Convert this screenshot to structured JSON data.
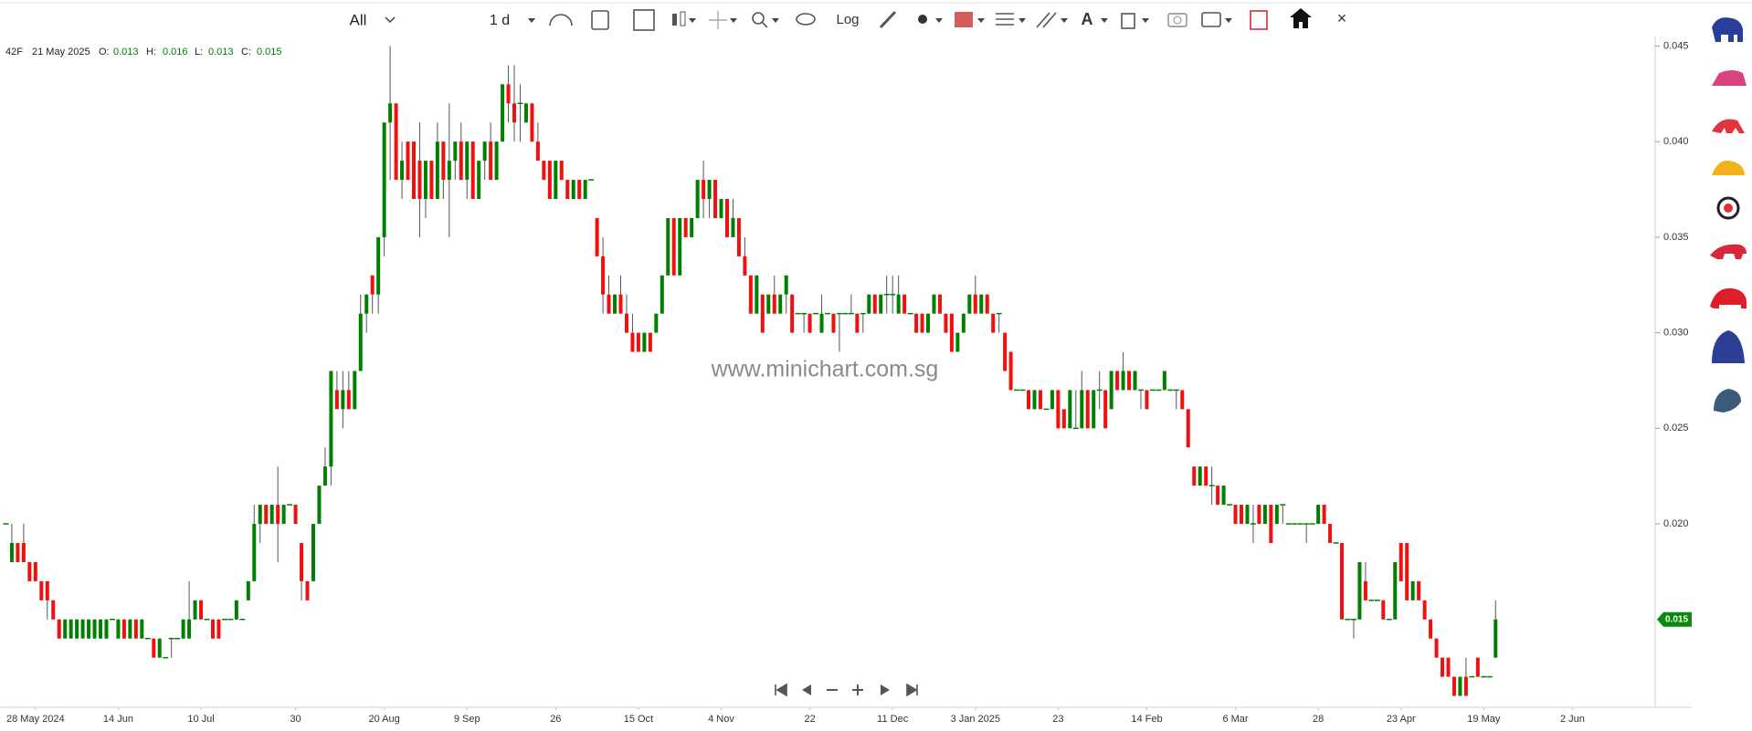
{
  "toolbar": {
    "range": "All",
    "interval": "1 d",
    "log": "Log",
    "close": "×"
  },
  "legend": {
    "symbol": "42F",
    "date": "21 May 2025",
    "o": "O:",
    "h": "H:",
    "l": "L:",
    "c": "C:"
  },
  "watermark": "www.minichart.com.sg",
  "chart_data": {
    "type": "candlestick",
    "colors": {
      "up": "#008000",
      "down": "#f01010",
      "wick": "#555555"
    },
    "grid": false,
    "open": [
      0.02,
      0.018,
      0.019,
      0.019,
      0.018,
      0.018,
      0.017,
      0.017,
      0.016,
      0.015,
      0.014,
      0.014,
      0.014,
      0.014,
      0.014,
      0.014,
      0.014,
      0.014,
      0.015,
      0.014,
      0.015,
      0.014,
      0.015,
      0.014,
      0.014,
      0.014,
      0.013,
      0.013,
      0.014,
      0.014,
      0.014,
      0.014,
      0.015,
      0.016,
      0.015,
      0.015,
      0.015,
      0.015,
      0.015,
      0.015,
      0.015,
      0.016,
      0.017,
      0.02,
      0.021,
      0.02,
      0.021,
      0.02,
      0.021,
      0.021,
      0.019,
      0.017,
      0.017,
      0.02,
      0.022,
      0.023,
      0.027,
      0.026,
      0.027,
      0.026,
      0.028,
      0.031,
      0.033,
      0.032,
      0.035,
      0.041,
      0.042,
      0.038,
      0.04,
      0.04,
      0.039,
      0.037,
      0.039,
      0.037,
      0.04,
      0.038,
      0.039,
      0.04,
      0.038,
      0.04,
      0.037,
      0.039,
      0.04,
      0.038,
      0.04,
      0.043,
      0.042,
      0.042,
      0.041,
      0.042,
      0.04,
      0.039,
      0.039,
      0.037,
      0.039,
      0.038,
      0.037,
      0.038,
      0.037,
      0.038,
      0.036,
      0.034,
      0.032,
      0.031,
      0.032,
      0.031,
      0.03,
      0.03,
      0.029,
      0.03,
      0.03,
      0.031,
      0.033,
      0.036,
      0.033,
      0.036,
      0.035,
      0.036,
      0.038,
      0.037,
      0.038,
      0.036,
      0.037,
      0.035,
      0.036,
      0.034,
      0.033,
      0.031,
      0.032,
      0.031,
      0.032,
      0.031,
      0.032,
      0.032,
      0.031,
      0.031,
      0.031,
      0.031,
      0.03,
      0.031,
      0.031,
      0.031,
      0.031,
      0.031,
      0.031,
      0.031,
      0.031,
      0.032,
      0.031,
      0.032,
      0.032,
      0.031,
      0.032,
      0.031,
      0.031,
      0.031,
      0.03,
      0.031,
      0.032,
      0.031,
      0.031,
      0.029,
      0.03,
      0.031,
      0.032,
      0.031,
      0.032,
      0.031,
      0.031,
      0.03,
      0.029,
      0.027,
      0.027,
      0.027,
      0.026,
      0.027,
      0.026,
      0.026,
      0.027,
      0.026,
      0.025,
      0.025,
      0.025,
      0.027,
      0.025,
      0.027,
      0.027,
      0.026,
      0.028,
      0.027,
      0.028,
      0.027,
      0.027,
      0.027,
      0.027,
      0.027,
      0.027,
      0.027,
      0.027,
      0.027,
      0.026,
      0.023,
      0.022,
      0.023,
      0.022,
      0.022,
      0.021,
      0.021,
      0.021,
      0.021,
      0.02,
      0.02,
      0.021,
      0.02,
      0.021,
      0.02,
      0.021,
      0.02,
      0.02,
      0.02,
      0.02,
      0.02,
      0.02,
      0.021,
      0.02,
      0.019,
      0.019,
      0.015,
      0.015,
      0.015,
      0.017,
      0.016,
      0.016,
      0.016,
      0.015,
      0.015,
      0.019,
      0.019,
      0.016,
      0.017,
      0.016,
      0.015,
      0.014,
      0.013,
      0.013,
      0.012,
      0.011,
      0.012,
      0.012,
      0.013,
      0.012,
      0.012,
      0.013
    ],
    "high": [
      0.02,
      0.02,
      0.019,
      0.02,
      0.018,
      0.018,
      0.017,
      0.017,
      0.016,
      0.015,
      0.015,
      0.015,
      0.015,
      0.015,
      0.015,
      0.015,
      0.015,
      0.015,
      0.015,
      0.015,
      0.015,
      0.015,
      0.015,
      0.015,
      0.014,
      0.014,
      0.014,
      0.013,
      0.014,
      0.014,
      0.015,
      0.017,
      0.016,
      0.016,
      0.015,
      0.015,
      0.015,
      0.015,
      0.015,
      0.016,
      0.015,
      0.017,
      0.021,
      0.021,
      0.021,
      0.021,
      0.023,
      0.021,
      0.021,
      0.021,
      0.019,
      0.017,
      0.02,
      0.022,
      0.024,
      0.028,
      0.028,
      0.028,
      0.028,
      0.028,
      0.032,
      0.032,
      0.033,
      0.035,
      0.041,
      0.045,
      0.042,
      0.04,
      0.04,
      0.04,
      0.041,
      0.039,
      0.039,
      0.041,
      0.04,
      0.042,
      0.04,
      0.041,
      0.04,
      0.04,
      0.039,
      0.04,
      0.041,
      0.04,
      0.043,
      0.044,
      0.044,
      0.043,
      0.042,
      0.042,
      0.041,
      0.039,
      0.039,
      0.039,
      0.039,
      0.038,
      0.038,
      0.038,
      0.038,
      0.038,
      0.036,
      0.035,
      0.033,
      0.032,
      0.033,
      0.032,
      0.031,
      0.03,
      0.03,
      0.03,
      0.031,
      0.033,
      0.036,
      0.036,
      0.036,
      0.036,
      0.036,
      0.038,
      0.039,
      0.038,
      0.038,
      0.037,
      0.037,
      0.037,
      0.036,
      0.035,
      0.033,
      0.033,
      0.032,
      0.032,
      0.033,
      0.032,
      0.033,
      0.032,
      0.031,
      0.031,
      0.031,
      0.031,
      0.032,
      0.031,
      0.031,
      0.031,
      0.031,
      0.032,
      0.031,
      0.031,
      0.032,
      0.032,
      0.032,
      0.033,
      0.033,
      0.033,
      0.032,
      0.031,
      0.031,
      0.031,
      0.031,
      0.032,
      0.032,
      0.031,
      0.031,
      0.03,
      0.031,
      0.032,
      0.033,
      0.032,
      0.032,
      0.031,
      0.031,
      0.03,
      0.029,
      0.027,
      0.027,
      0.027,
      0.027,
      0.027,
      0.026,
      0.027,
      0.027,
      0.026,
      0.027,
      0.027,
      0.028,
      0.027,
      0.027,
      0.028,
      0.027,
      0.028,
      0.028,
      0.029,
      0.028,
      0.028,
      0.027,
      0.027,
      0.027,
      0.027,
      0.028,
      0.027,
      0.027,
      0.027,
      0.026,
      0.023,
      0.023,
      0.023,
      0.023,
      0.022,
      0.022,
      0.021,
      0.021,
      0.021,
      0.021,
      0.021,
      0.021,
      0.021,
      0.021,
      0.021,
      0.021,
      0.02,
      0.02,
      0.02,
      0.02,
      0.02,
      0.021,
      0.021,
      0.02,
      0.019,
      0.019,
      0.015,
      0.015,
      0.018,
      0.018,
      0.016,
      0.016,
      0.016,
      0.015,
      0.018,
      0.019,
      0.019,
      0.017,
      0.017,
      0.016,
      0.015,
      0.014,
      0.013,
      0.013,
      0.012,
      0.012,
      0.013,
      0.012,
      0.013,
      0.012,
      0.012,
      0.016
    ],
    "low": [
      0.02,
      0.018,
      0.018,
      0.018,
      0.017,
      0.017,
      0.016,
      0.015,
      0.015,
      0.014,
      0.014,
      0.014,
      0.014,
      0.014,
      0.014,
      0.014,
      0.014,
      0.014,
      0.015,
      0.014,
      0.014,
      0.014,
      0.014,
      0.014,
      0.014,
      0.013,
      0.013,
      0.013,
      0.013,
      0.014,
      0.014,
      0.014,
      0.015,
      0.015,
      0.015,
      0.014,
      0.014,
      0.015,
      0.015,
      0.015,
      0.015,
      0.016,
      0.017,
      0.019,
      0.02,
      0.02,
      0.018,
      0.02,
      0.021,
      0.02,
      0.016,
      0.016,
      0.017,
      0.02,
      0.022,
      0.022,
      0.026,
      0.025,
      0.026,
      0.026,
      0.028,
      0.03,
      0.031,
      0.031,
      0.034,
      0.038,
      0.038,
      0.037,
      0.038,
      0.037,
      0.035,
      0.036,
      0.037,
      0.037,
      0.037,
      0.035,
      0.038,
      0.038,
      0.037,
      0.037,
      0.037,
      0.038,
      0.038,
      0.038,
      0.04,
      0.041,
      0.04,
      0.04,
      0.041,
      0.04,
      0.039,
      0.038,
      0.037,
      0.037,
      0.038,
      0.037,
      0.037,
      0.037,
      0.037,
      0.038,
      0.034,
      0.031,
      0.031,
      0.031,
      0.031,
      0.03,
      0.029,
      0.029,
      0.029,
      0.029,
      0.03,
      0.031,
      0.033,
      0.033,
      0.033,
      0.035,
      0.035,
      0.036,
      0.036,
      0.036,
      0.036,
      0.036,
      0.035,
      0.035,
      0.034,
      0.033,
      0.031,
      0.031,
      0.03,
      0.031,
      0.031,
      0.031,
      0.031,
      0.03,
      0.031,
      0.03,
      0.03,
      0.031,
      0.03,
      0.031,
      0.03,
      0.029,
      0.031,
      0.031,
      0.03,
      0.03,
      0.031,
      0.031,
      0.031,
      0.031,
      0.031,
      0.031,
      0.031,
      0.031,
      0.03,
      0.03,
      0.03,
      0.031,
      0.031,
      0.03,
      0.029,
      0.029,
      0.03,
      0.031,
      0.031,
      0.031,
      0.031,
      0.03,
      0.03,
      0.028,
      0.027,
      0.027,
      0.027,
      0.026,
      0.026,
      0.026,
      0.026,
      0.026,
      0.025,
      0.025,
      0.025,
      0.025,
      0.025,
      0.025,
      0.025,
      0.026,
      0.025,
      0.026,
      0.027,
      0.027,
      0.027,
      0.027,
      0.026,
      0.026,
      0.027,
      0.027,
      0.027,
      0.027,
      0.026,
      0.026,
      0.024,
      0.022,
      0.022,
      0.022,
      0.021,
      0.021,
      0.021,
      0.021,
      0.02,
      0.02,
      0.02,
      0.019,
      0.02,
      0.02,
      0.019,
      0.02,
      0.02,
      0.02,
      0.02,
      0.02,
      0.019,
      0.02,
      0.02,
      0.02,
      0.019,
      0.019,
      0.015,
      0.015,
      0.014,
      0.015,
      0.016,
      0.016,
      0.016,
      0.015,
      0.015,
      0.015,
      0.017,
      0.016,
      0.016,
      0.016,
      0.015,
      0.014,
      0.013,
      0.012,
      0.012,
      0.011,
      0.011,
      0.011,
      0.012,
      0.012,
      0.012,
      0.012,
      0.013
    ],
    "close": [
      0.02,
      0.019,
      0.018,
      0.018,
      0.017,
      0.017,
      0.016,
      0.016,
      0.015,
      0.014,
      0.015,
      0.015,
      0.015,
      0.015,
      0.015,
      0.015,
      0.015,
      0.015,
      0.015,
      0.015,
      0.014,
      0.015,
      0.014,
      0.015,
      0.014,
      0.013,
      0.014,
      0.013,
      0.014,
      0.014,
      0.015,
      0.015,
      0.016,
      0.015,
      0.015,
      0.014,
      0.014,
      0.015,
      0.015,
      0.016,
      0.015,
      0.017,
      0.02,
      0.021,
      0.02,
      0.021,
      0.02,
      0.021,
      0.021,
      0.02,
      0.017,
      0.016,
      0.02,
      0.022,
      0.023,
      0.028,
      0.026,
      0.027,
      0.026,
      0.028,
      0.031,
      0.032,
      0.032,
      0.035,
      0.041,
      0.042,
      0.038,
      0.039,
      0.038,
      0.037,
      0.037,
      0.039,
      0.037,
      0.04,
      0.038,
      0.039,
      0.04,
      0.038,
      0.04,
      0.037,
      0.039,
      0.04,
      0.038,
      0.04,
      0.043,
      0.042,
      0.041,
      0.042,
      0.042,
      0.04,
      0.039,
      0.038,
      0.037,
      0.039,
      0.038,
      0.037,
      0.038,
      0.037,
      0.038,
      0.038,
      0.034,
      0.032,
      0.031,
      0.032,
      0.031,
      0.03,
      0.029,
      0.029,
      0.03,
      0.029,
      0.031,
      0.033,
      0.036,
      0.033,
      0.036,
      0.035,
      0.036,
      0.038,
      0.037,
      0.038,
      0.036,
      0.037,
      0.035,
      0.036,
      0.034,
      0.033,
      0.031,
      0.033,
      0.03,
      0.032,
      0.031,
      0.032,
      0.033,
      0.03,
      0.031,
      0.031,
      0.03,
      0.031,
      0.031,
      0.031,
      0.03,
      0.031,
      0.031,
      0.031,
      0.03,
      0.031,
      0.032,
      0.031,
      0.032,
      0.032,
      0.032,
      0.032,
      0.031,
      0.031,
      0.03,
      0.03,
      0.031,
      0.032,
      0.031,
      0.03,
      0.029,
      0.03,
      0.031,
      0.032,
      0.031,
      0.032,
      0.031,
      0.03,
      0.031,
      0.028,
      0.027,
      0.027,
      0.027,
      0.026,
      0.027,
      0.026,
      0.026,
      0.027,
      0.025,
      0.025,
      0.027,
      0.025,
      0.027,
      0.025,
      0.027,
      0.027,
      0.025,
      0.028,
      0.027,
      0.028,
      0.027,
      0.028,
      0.027,
      0.026,
      0.027,
      0.027,
      0.028,
      0.027,
      0.027,
      0.026,
      0.024,
      0.022,
      0.023,
      0.022,
      0.022,
      0.021,
      0.022,
      0.021,
      0.02,
      0.02,
      0.021,
      0.02,
      0.02,
      0.021,
      0.019,
      0.021,
      0.021,
      0.02,
      0.02,
      0.02,
      0.02,
      0.02,
      0.021,
      0.02,
      0.019,
      0.019,
      0.015,
      0.015,
      0.015,
      0.018,
      0.016,
      0.016,
      0.016,
      0.015,
      0.015,
      0.018,
      0.017,
      0.016,
      0.017,
      0.016,
      0.015,
      0.014,
      0.013,
      0.012,
      0.012,
      0.011,
      0.012,
      0.011,
      0.012,
      0.012,
      0.012,
      0.012,
      0.015
    ],
    "xlim": [
      -1,
      279
    ],
    "xticks": [
      {
        "value": 5,
        "label": "28 May 2024"
      },
      {
        "value": 19,
        "label": "14 Jun"
      },
      {
        "value": 33,
        "label": "10 Jul"
      },
      {
        "value": 49,
        "label": "30"
      },
      {
        "value": 64,
        "label": "20 Aug"
      },
      {
        "value": 78,
        "label": "9 Sep"
      },
      {
        "value": 93,
        "label": "26"
      },
      {
        "value": 107,
        "label": "15 Oct"
      },
      {
        "value": 121,
        "label": "4 Nov"
      },
      {
        "value": 136,
        "label": "22"
      },
      {
        "value": 150,
        "label": "11 Dec"
      },
      {
        "value": 164,
        "label": "3 Jan 2025"
      },
      {
        "value": 178,
        "label": "23"
      },
      {
        "value": 193,
        "label": "14 Feb"
      },
      {
        "value": 208,
        "label": "6 Mar"
      },
      {
        "value": 222,
        "label": "28"
      },
      {
        "value": 236,
        "label": "23 Apr"
      },
      {
        "value": 250,
        "label": "19 May"
      },
      {
        "value": 265,
        "label": "2 Jun"
      }
    ],
    "ylim": [
      0.0105,
      0.0455
    ],
    "yticks": [
      {
        "value": 0.02,
        "label": "0.020"
      },
      0.025,
      {
        "value": 0.03,
        "label": "0.030"
      },
      0.035,
      {
        "value": 0.04,
        "label": "0.040"
      },
      0.045
    ]
  }
}
